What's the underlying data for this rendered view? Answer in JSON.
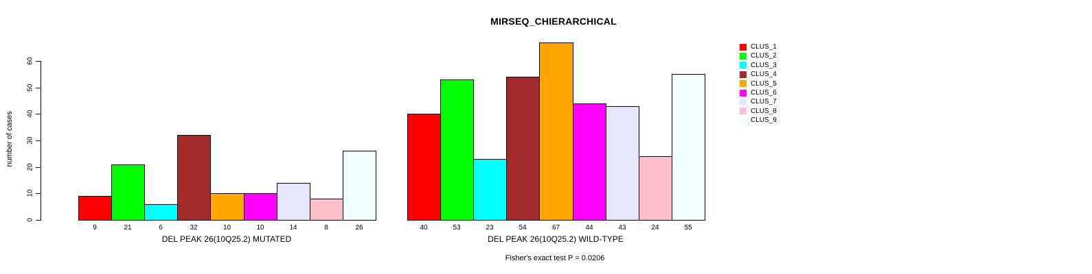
{
  "title": "MIRSEQ_CHIERARCHICAL",
  "colors": {
    "background": "#FFFFFF",
    "axis": "#000000",
    "text": "#000000",
    "bar_border": "#000000"
  },
  "chart_data": {
    "type": "bar",
    "title": "MIRSEQ_CHIERARCHICAL",
    "ylabel": "number of cases",
    "xlabel": "",
    "ylim": [
      0,
      67
    ],
    "yticks": [
      0,
      10,
      20,
      30,
      40,
      50,
      60
    ],
    "grid": false,
    "legend_position": "right",
    "categories": [
      "CLUS_1",
      "CLUS_2",
      "CLUS_3",
      "CLUS_4",
      "CLUS_5",
      "CLUS_6",
      "CLUS_7",
      "CLUS_8",
      "CLUS_9"
    ],
    "legend": [
      {
        "label": "CLUS_1",
        "color": "#FF0000"
      },
      {
        "label": "CLUS_2",
        "color": "#00FF00"
      },
      {
        "label": "CLUS_3",
        "color": "#00FFFF"
      },
      {
        "label": "CLUS_4",
        "color": "#A52A2A"
      },
      {
        "label": "CLUS_5",
        "color": "#FFA500"
      },
      {
        "label": "CLUS_6",
        "color": "#FF00FF"
      },
      {
        "label": "CLUS_7",
        "color": "#E6E6FA"
      },
      {
        "label": "CLUS_8",
        "color": "#FFC0CB"
      },
      {
        "label": "CLUS_9",
        "color": "#F0FFFF"
      }
    ],
    "groups": [
      {
        "label": "DEL PEAK 26(10Q25.2) MUTATED",
        "values": [
          9,
          21,
          6,
          32,
          10,
          10,
          14,
          8,
          26
        ]
      },
      {
        "label": "DEL PEAK 26(10Q25.2) WILD-TYPE",
        "values": [
          40,
          53,
          23,
          54,
          67,
          44,
          43,
          24,
          55
        ]
      }
    ],
    "annotation": "Fisher's exact test P = 0.0206"
  }
}
